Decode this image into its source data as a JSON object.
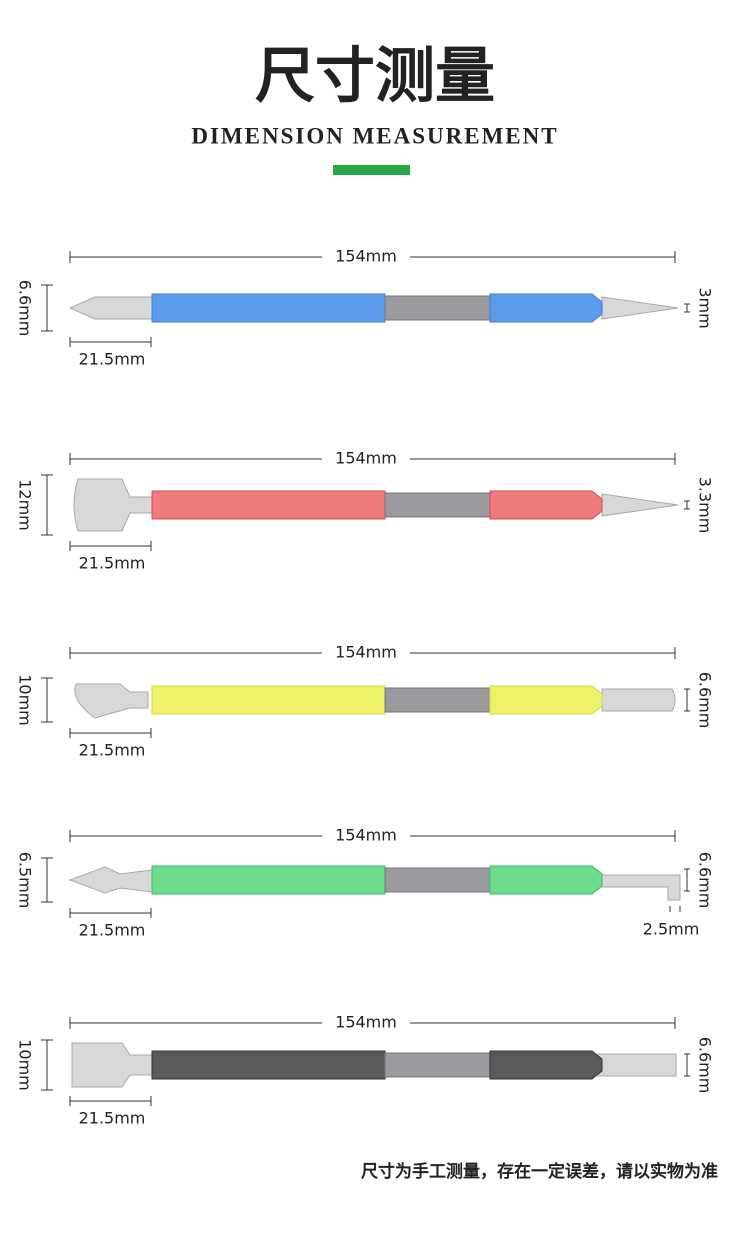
{
  "header": {
    "title": "尺寸测量",
    "subtitle": "DIMENSION MEASUREMENT"
  },
  "tools": [
    {
      "length": "154mm",
      "height": "6.6mm",
      "tip": "21.5mm",
      "right": "3mm"
    },
    {
      "length": "154mm",
      "height": "12mm",
      "tip": "21.5mm",
      "right": "3.3mm"
    },
    {
      "length": "154mm",
      "height": "10mm",
      "tip": "21.5mm",
      "right": "6.6mm"
    },
    {
      "length": "154mm",
      "height": "6.5mm",
      "tip": "21.5mm",
      "right": "6.6mm",
      "extra": "2.5mm"
    },
    {
      "length": "154mm",
      "height": "10mm",
      "tip": "21.5mm",
      "right": "6.6mm"
    }
  ],
  "footer": {
    "note": "尺寸为手工测量，存在一定误差，请以实物为准"
  }
}
